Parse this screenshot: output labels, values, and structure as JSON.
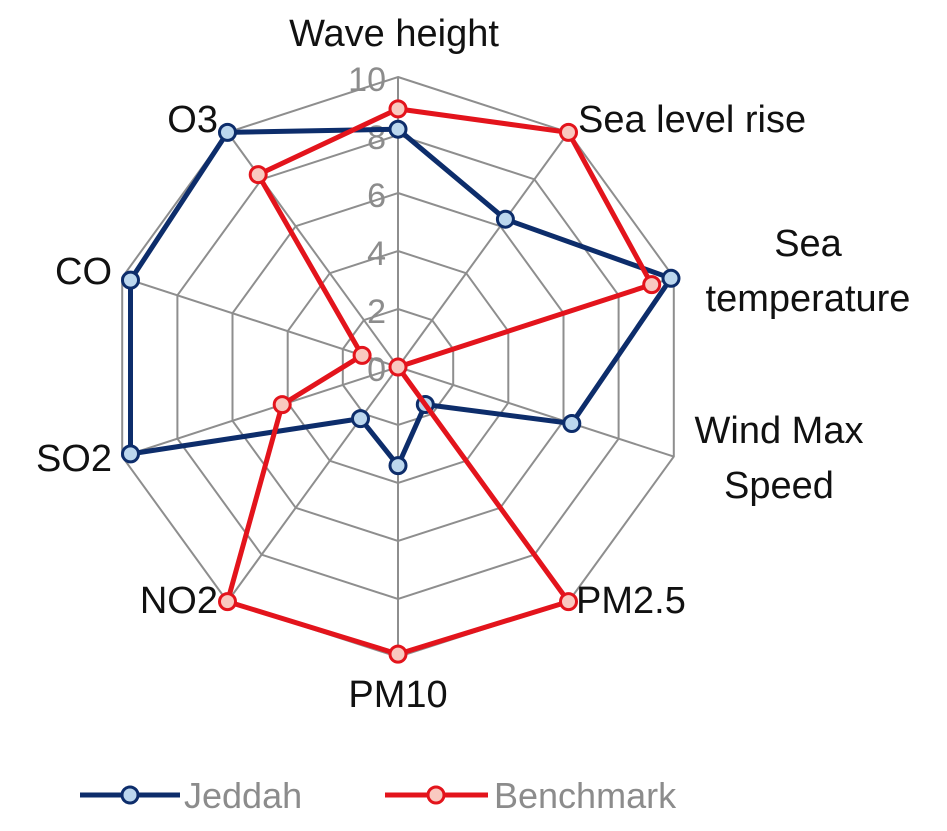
{
  "chart_data": {
    "type": "radar",
    "categories": [
      "Wave height",
      "Sea level rise",
      "Sea temperature",
      "Wind Max Speed",
      "PM2.5",
      "PM10",
      "NO2",
      "SO2",
      "CO",
      "O3"
    ],
    "category_lines": [
      [
        "Wave height"
      ],
      [
        "Sea level rise"
      ],
      [
        "Sea",
        "temperature"
      ],
      [
        "Wind Max",
        "Speed"
      ],
      [
        "PM2.5"
      ],
      [
        "PM10"
      ],
      [
        "NO2"
      ],
      [
        "SO2"
      ],
      [
        "CO"
      ],
      [
        "O3"
      ]
    ],
    "series": [
      {
        "name": "Jeddah",
        "color": "#0d2d6b",
        "marker_fill": "#bcd7ee",
        "values": [
          8.2,
          6.3,
          9.9,
          6.3,
          1.6,
          3.4,
          2.2,
          9.7,
          9.7,
          10
        ]
      },
      {
        "name": "Benchmark",
        "color": "#e3141c",
        "marker_fill": "#f9c9c0",
        "values": [
          8.9,
          10,
          9.2,
          0,
          10,
          9.9,
          10,
          4.2,
          1.3,
          8.2
        ]
      }
    ],
    "rlim": [
      0,
      10
    ],
    "ticks": [
      "0",
      "2",
      "4",
      "6",
      "8",
      "10"
    ],
    "tick_values": [
      0,
      2,
      4,
      6,
      8,
      10
    ],
    "grid": true,
    "legend_position": "bottom"
  }
}
